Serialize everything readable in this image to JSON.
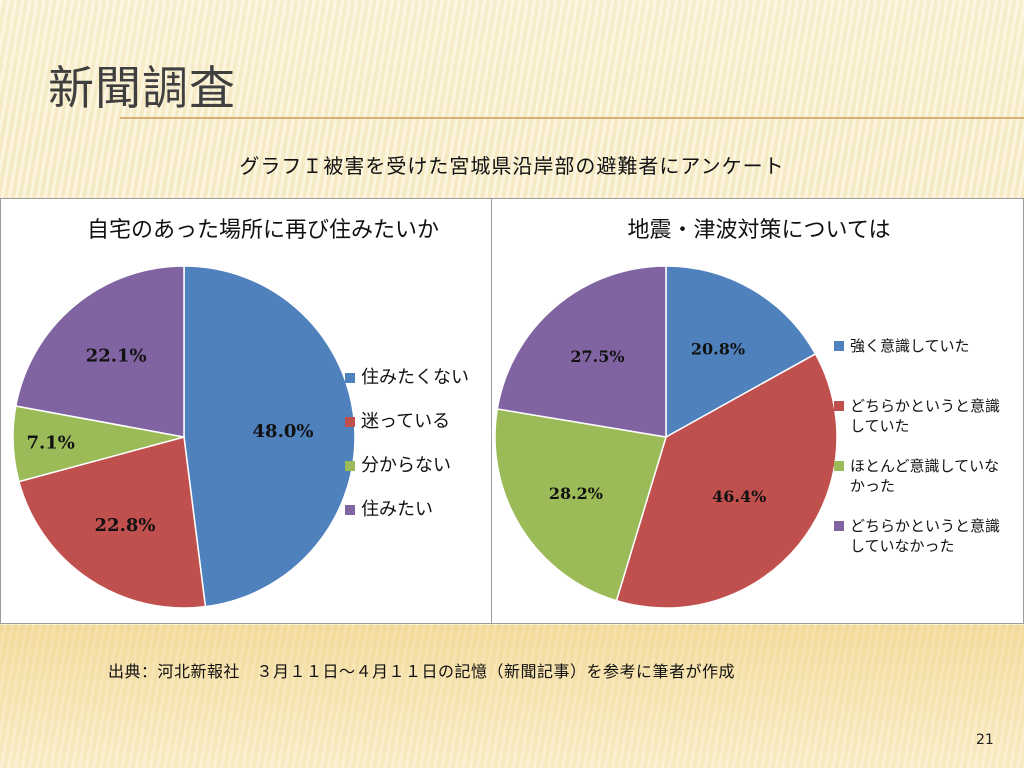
{
  "slide": {
    "title": "新聞調査",
    "subtitle": "グラフＩ被害を受けた宮城県沿岸部の避難者にアンケート",
    "source": "出典：河北新報社　３月１１日～４月１１日の記憶（新聞記事）を参考に筆者が作成",
    "page_number": "21"
  },
  "chart_data": [
    {
      "type": "pie",
      "title": "自宅のあった場所に再び住みたいか",
      "categories": [
        "住みたくない",
        "迷っている",
        "分からない",
        "住みたい"
      ],
      "values": [
        48.0,
        22.8,
        7.1,
        22.1
      ],
      "value_labels": [
        "48.0%",
        "22.8%",
        "7.1%",
        "22.1%"
      ],
      "colors": [
        "#4f81bd",
        "#c0504d",
        "#9bbb59",
        "#8064a2"
      ],
      "legend_position": "right"
    },
    {
      "type": "pie",
      "title": "地震・津波対策については",
      "categories": [
        "強く意識していた",
        "どちらかというと意識していた",
        "ほとんど意識していなかった",
        "どちらかというと意識していなかった"
      ],
      "legend_lines": [
        [
          "強く意識していた"
        ],
        [
          "どちらかというと意識",
          "していた"
        ],
        [
          "ほとんど意識していな",
          "かった"
        ],
        [
          "どちらかというと意識",
          "していなかった"
        ]
      ],
      "values": [
        20.8,
        46.4,
        28.2,
        27.5
      ],
      "value_labels": [
        "20.8%",
        "46.4%",
        "28.2%",
        "27.5%"
      ],
      "colors": [
        "#4f81bd",
        "#c0504d",
        "#9bbb59",
        "#8064a2"
      ],
      "legend_position": "right"
    }
  ]
}
